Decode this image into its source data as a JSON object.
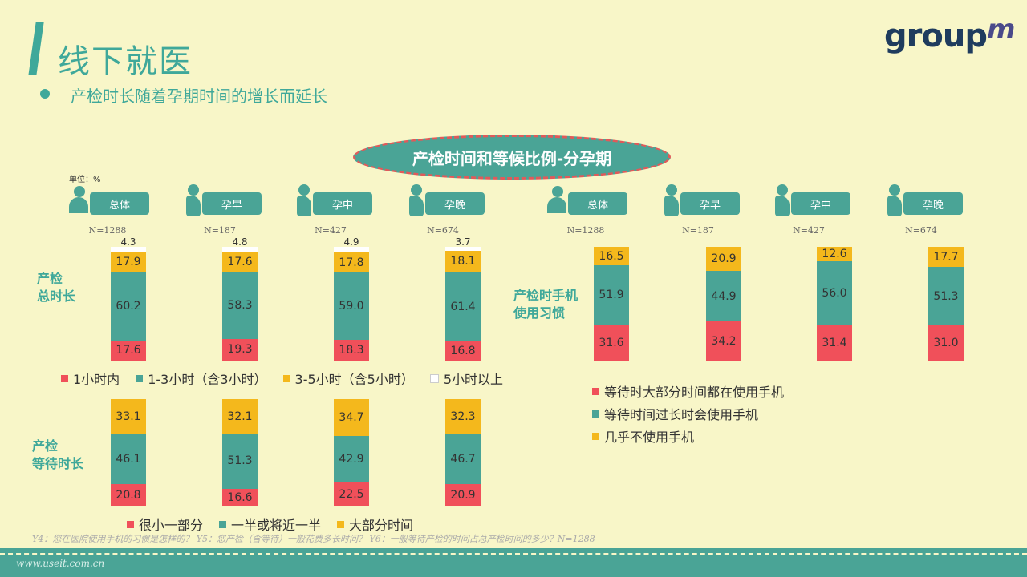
{
  "title": "线下就医",
  "subtitle": "产检时长随着孕期时间的增长而延长",
  "banner": "产检时间和等候比例-分孕期",
  "unit": "单位：%",
  "colors": {
    "red": "#f0505a",
    "teal": "#4aa496",
    "orange": "#f4b81c",
    "white": "#ffffff"
  },
  "segments_left": [
    {
      "label": "总体",
      "n": "N=1288"
    },
    {
      "label": "孕早",
      "n": "N=187"
    },
    {
      "label": "孕中",
      "n": "N=427"
    },
    {
      "label": "孕晚",
      "n": "N=674"
    }
  ],
  "segments_right": [
    {
      "label": "总体",
      "n": "N=1288"
    },
    {
      "label": "孕早",
      "n": "N=187"
    },
    {
      "label": "孕中",
      "n": "N=427"
    },
    {
      "label": "孕晚",
      "n": "N=674"
    }
  ],
  "row_labels": {
    "total": "产检\n总时长",
    "wait": "产检\n等待时长",
    "phone": "产检时手机\n使用习惯"
  },
  "legends": {
    "total": [
      "1小时内",
      "1-3小时（含3小时）",
      "3-5小时（含5小时）",
      "5小时以上"
    ],
    "wait": [
      "很小一部分",
      "一半或将近一半",
      "大部分时间"
    ],
    "phone": [
      "等待时大部分时间都在使用手机",
      "等待时间过长时会使用手机",
      "几乎不使用手机"
    ]
  },
  "chart_data": [
    {
      "type": "bar",
      "title": "产检总时长",
      "stacked": true,
      "categories": [
        "总体",
        "孕早",
        "孕中",
        "孕晚"
      ],
      "series": [
        {
          "name": "1小时内",
          "values": [
            17.6,
            19.3,
            18.3,
            16.8
          ]
        },
        {
          "name": "1-3小时（含3小时）",
          "values": [
            60.2,
            58.3,
            59.0,
            61.4
          ]
        },
        {
          "name": "3-5小时（含5小时）",
          "values": [
            17.9,
            17.6,
            17.8,
            18.1
          ]
        },
        {
          "name": "5小时以上",
          "values": [
            4.3,
            4.8,
            4.9,
            3.7
          ]
        }
      ]
    },
    {
      "type": "bar",
      "title": "产检等待时长",
      "stacked": true,
      "categories": [
        "总体",
        "孕早",
        "孕中",
        "孕晚"
      ],
      "series": [
        {
          "name": "很小一部分",
          "values": [
            20.8,
            16.6,
            22.5,
            20.9
          ]
        },
        {
          "name": "一半或将近一半",
          "values": [
            46.1,
            51.3,
            42.9,
            46.7
          ]
        },
        {
          "name": "大部分时间",
          "values": [
            33.1,
            32.1,
            34.7,
            32.3
          ]
        }
      ]
    },
    {
      "type": "bar",
      "title": "产检时手机使用习惯",
      "stacked": true,
      "categories": [
        "总体",
        "孕早",
        "孕中",
        "孕晚"
      ],
      "series": [
        {
          "name": "等待时大部分时间都在使用手机",
          "values": [
            31.6,
            34.2,
            31.4,
            31.0
          ]
        },
        {
          "name": "等待时间过长时会使用手机",
          "values": [
            51.9,
            44.9,
            56.0,
            51.3
          ]
        },
        {
          "name": "几乎不使用手机",
          "values": [
            16.5,
            20.9,
            12.6,
            17.7
          ]
        }
      ]
    }
  ],
  "source": "Y4：您在医院使用手机的习惯是怎样的？ Y5：您产检（含等待）一般花费多长时间？ Y6：一般等待产检的时间占总产检时间的多少？N=1288",
  "watermark": "www.useit.com.cn",
  "logo": {
    "main": "group",
    "accent": "m"
  }
}
